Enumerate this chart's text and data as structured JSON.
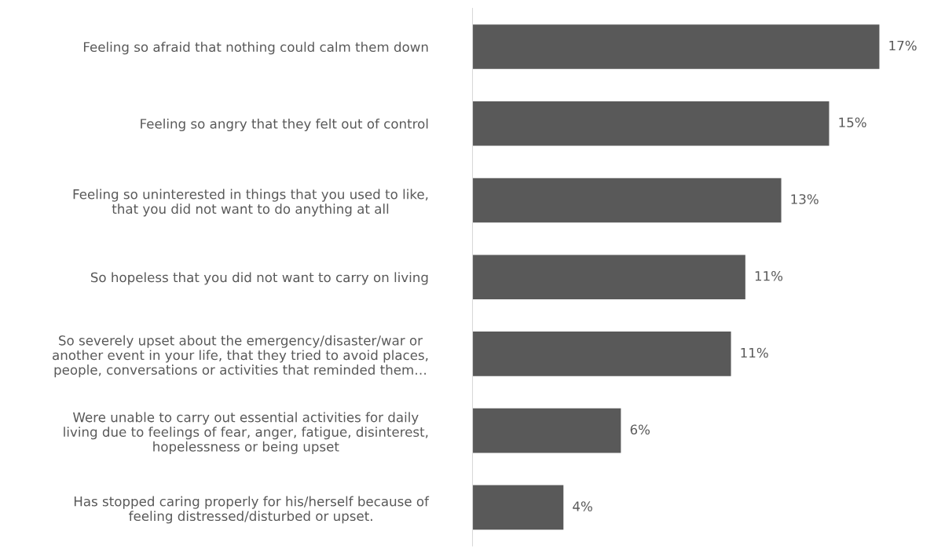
{
  "chart_data": {
    "type": "bar",
    "orientation": "horizontal",
    "categories": [
      "Feeling so afraid that nothing could calm them down",
      "Feeling so angry that they felt out of control",
      "Feeling so uninterested in things that you used to like,\nthat you did not want to do anything at all",
      "So hopeless that you did not want to carry on living",
      "So severely upset about the emergency/disaster/war or\nanother event in your life, that they tried to avoid places,\npeople, conversations or activities that reminded them…",
      "Were unable to carry out essential activities for daily\nliving due to feelings of fear, anger, fatigue, disinterest,\nhopelessness or being upset",
      "Has stopped caring properly for his/herself because of\nfeeling distressed/disturbed or upset."
    ],
    "values": [
      17,
      14.9,
      12.9,
      11.4,
      10.8,
      6.2,
      3.8
    ],
    "value_labels": [
      "17%",
      "15%",
      "13%",
      "11%",
      "11%",
      "6%",
      "4%"
    ],
    "color": "#595959",
    "grid": false,
    "legend": false
  }
}
